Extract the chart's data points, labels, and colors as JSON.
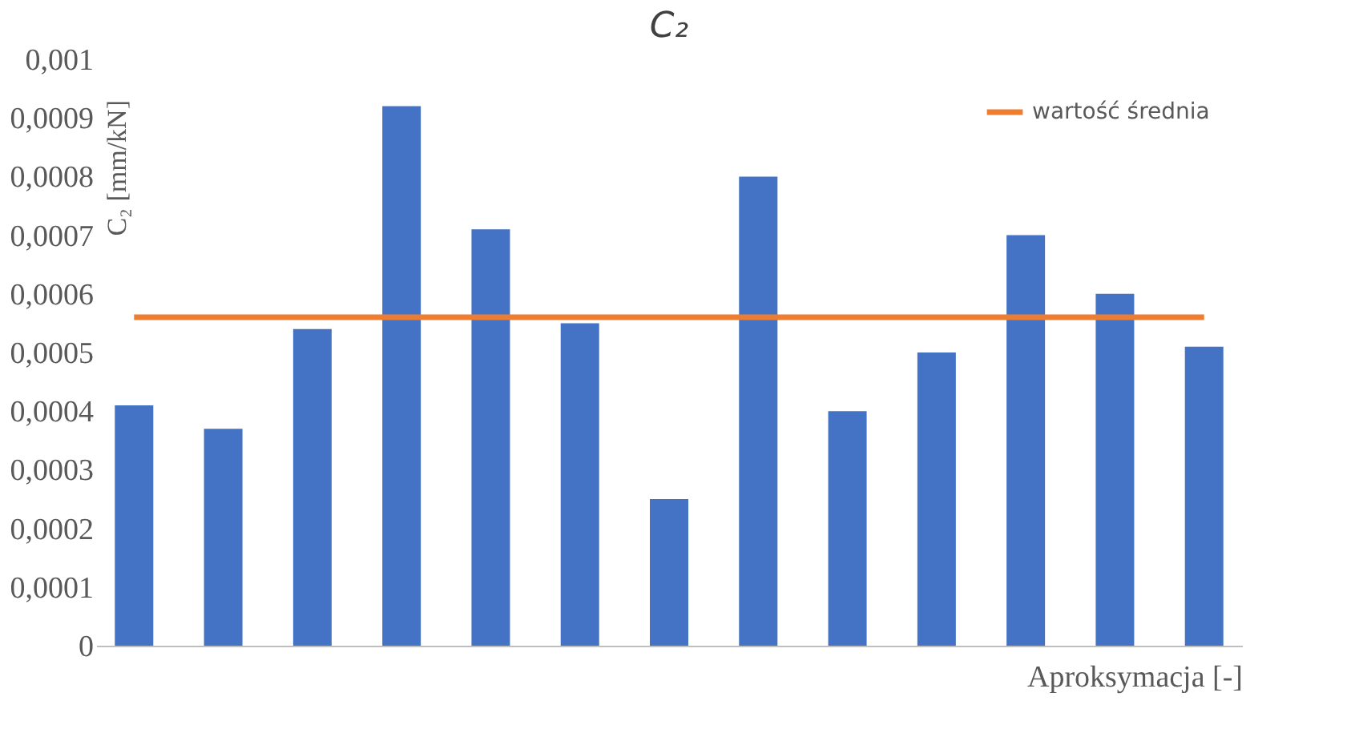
{
  "chart_data": {
    "type": "bar",
    "title": "C₂",
    "xlabel": "Aproksymacja [-]",
    "ylabel": "C₂ [mm/kN]",
    "categories": [
      null,
      null,
      null,
      null,
      null,
      null,
      null,
      null,
      null,
      null,
      null,
      null,
      null
    ],
    "series": [
      {
        "color": "#4472c4",
        "values": [
          0.00041,
          0.00037,
          0.00054,
          0.00092,
          0.00071,
          0.00055,
          0.00025,
          0.0008,
          0.0004,
          0.0005,
          0.0007,
          0.0006,
          0.00051
        ]
      },
      {
        "type": "line",
        "name": "wartość średnia",
        "color": "#ed7d31",
        "values": [
          0.00056,
          0.00056,
          0.00056,
          0.00056,
          0.00056,
          0.00056,
          0.00056,
          0.00056,
          0.00056,
          0.00056,
          0.00056,
          0.00056,
          0.00056
        ]
      }
    ],
    "ylim": [
      0,
      0.001
    ],
    "yticks": [
      {
        "value": 0,
        "label": "0"
      },
      {
        "value": 0.0001,
        "label": "0,0001"
      },
      {
        "value": 0.0002,
        "label": "0,0002"
      },
      {
        "value": 0.0003,
        "label": "0,0003"
      },
      {
        "value": 0.0004,
        "label": "0,0004"
      },
      {
        "value": 0.0005,
        "label": "0,0005"
      },
      {
        "value": 0.0006,
        "label": "0,0006"
      },
      {
        "value": 0.0007,
        "label": "0,0007"
      },
      {
        "value": 0.0008,
        "label": "0,0008"
      },
      {
        "value": 0.0009,
        "label": "0,0009"
      },
      {
        "value": 0.001,
        "label": "0,001"
      }
    ],
    "grid": false,
    "legend": "top right",
    "tick_labels": "y"
  }
}
